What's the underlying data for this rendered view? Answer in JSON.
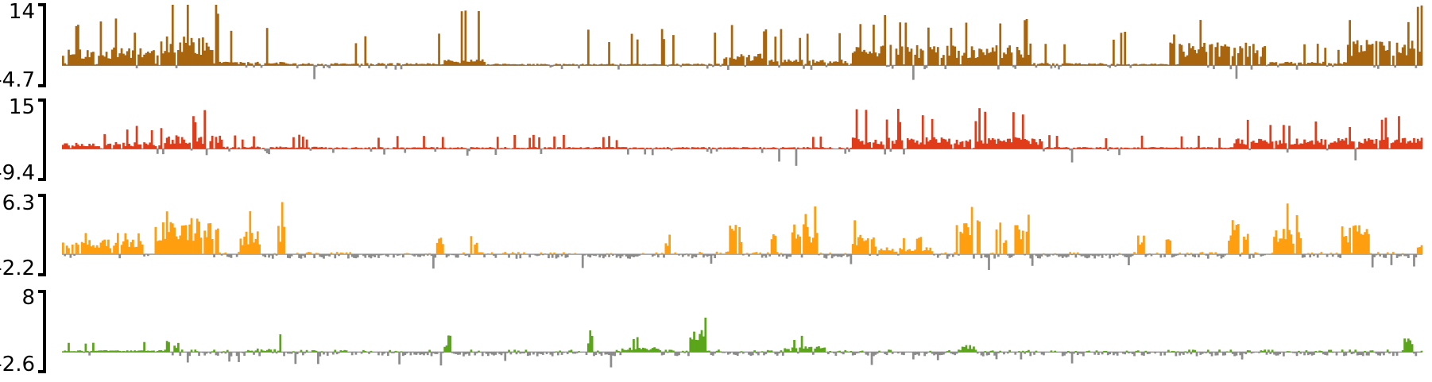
{
  "colors": {
    "negative": "#8c8c8c",
    "axis": "#000000",
    "background": "#ffffff"
  },
  "chart_data": [
    {
      "type": "bar",
      "name": "",
      "color": "#a8650e",
      "ylim": [
        -4.7,
        14
      ],
      "max_label": "14",
      "min_label": "-4.7",
      "bins": 720,
      "seed": 11,
      "profile": [
        {
          "start": 0.0,
          "end": 0.07,
          "level": 0.3,
          "spike": 0.9
        },
        {
          "start": 0.07,
          "end": 0.115,
          "level": 0.48,
          "spike": 1.2
        },
        {
          "start": 0.115,
          "end": 0.165,
          "level": 0.06,
          "spike": 0.7
        },
        {
          "start": 0.165,
          "end": 0.28,
          "level": 0.04,
          "spike": 0.6
        },
        {
          "start": 0.28,
          "end": 0.31,
          "level": 0.1,
          "spike": 1.0
        },
        {
          "start": 0.31,
          "end": 0.485,
          "level": 0.03,
          "spike": 0.6
        },
        {
          "start": 0.485,
          "end": 0.515,
          "level": 0.2,
          "spike": 1.1
        },
        {
          "start": 0.515,
          "end": 0.58,
          "level": 0.1,
          "spike": 0.6
        },
        {
          "start": 0.58,
          "end": 0.71,
          "level": 0.34,
          "spike": 0.9
        },
        {
          "start": 0.71,
          "end": 0.77,
          "level": 0.04,
          "spike": 0.4
        },
        {
          "start": 0.77,
          "end": 0.82,
          "level": 0.03,
          "spike": 0.6
        },
        {
          "start": 0.82,
          "end": 0.885,
          "level": 0.38,
          "spike": 1.0
        },
        {
          "start": 0.885,
          "end": 0.945,
          "level": 0.06,
          "spike": 0.4
        },
        {
          "start": 0.945,
          "end": 1.0,
          "level": 0.42,
          "spike": 1.0
        }
      ]
    },
    {
      "type": "bar",
      "name": "",
      "color": "#e03c1a",
      "ylim": [
        -9.4,
        15
      ],
      "max_label": "15",
      "min_label": "-9.4",
      "bins": 720,
      "seed": 23,
      "profile": [
        {
          "start": 0.0,
          "end": 0.075,
          "level": 0.14,
          "spike": 0.5
        },
        {
          "start": 0.075,
          "end": 0.115,
          "level": 0.28,
          "spike": 0.8
        },
        {
          "start": 0.115,
          "end": 0.2,
          "level": 0.05,
          "spike": 0.3
        },
        {
          "start": 0.2,
          "end": 0.58,
          "level": 0.04,
          "spike": 0.3
        },
        {
          "start": 0.58,
          "end": 0.72,
          "level": 0.24,
          "spike": 0.9
        },
        {
          "start": 0.72,
          "end": 0.86,
          "level": 0.04,
          "spike": 0.3
        },
        {
          "start": 0.86,
          "end": 0.93,
          "level": 0.22,
          "spike": 0.6
        },
        {
          "start": 0.93,
          "end": 1.0,
          "level": 0.24,
          "spike": 0.7
        }
      ]
    },
    {
      "type": "bar",
      "name": "",
      "color": "#ff9e0f",
      "ylim": [
        -2.2,
        6.3
      ],
      "max_label": "6.3",
      "min_label": "-2.2",
      "bins": 720,
      "seed": 37,
      "profile": [
        {
          "start": 0.0,
          "end": 0.06,
          "level": 0.26,
          "spike": 0.5
        },
        {
          "start": 0.068,
          "end": 0.115,
          "level": 0.62,
          "spike": 1.0
        },
        {
          "start": 0.13,
          "end": 0.145,
          "level": 0.4,
          "spike": 0.9
        },
        {
          "start": 0.158,
          "end": 0.163,
          "level": 0.55,
          "spike": 1.0
        },
        {
          "start": 0.275,
          "end": 0.28,
          "level": 0.3,
          "spike": 0.9
        },
        {
          "start": 0.3,
          "end": 0.305,
          "level": 0.42,
          "spike": 0.8
        },
        {
          "start": 0.442,
          "end": 0.446,
          "level": 0.38,
          "spike": 0.7
        },
        {
          "start": 0.48,
          "end": 0.49,
          "level": 0.06,
          "spike": 0.2
        },
        {
          "start": 0.49,
          "end": 0.5,
          "level": 0.5,
          "spike": 0.9
        },
        {
          "start": 0.52,
          "end": 0.525,
          "level": 0.36,
          "spike": 0.8
        },
        {
          "start": 0.535,
          "end": 0.555,
          "level": 0.52,
          "spike": 0.9
        },
        {
          "start": 0.58,
          "end": 0.6,
          "level": 0.34,
          "spike": 0.8
        },
        {
          "start": 0.6,
          "end": 0.64,
          "level": 0.12,
          "spike": 0.3
        },
        {
          "start": 0.655,
          "end": 0.675,
          "level": 0.58,
          "spike": 0.9
        },
        {
          "start": 0.685,
          "end": 0.694,
          "level": 0.55,
          "spike": 0.8
        },
        {
          "start": 0.7,
          "end": 0.71,
          "level": 0.52,
          "spike": 0.9
        },
        {
          "start": 0.79,
          "end": 0.795,
          "level": 0.36,
          "spike": 0.7
        },
        {
          "start": 0.81,
          "end": 0.815,
          "level": 0.55,
          "spike": 0.9
        },
        {
          "start": 0.855,
          "end": 0.872,
          "level": 0.58,
          "spike": 0.9
        },
        {
          "start": 0.89,
          "end": 0.91,
          "level": 0.5,
          "spike": 0.9
        },
        {
          "start": 0.94,
          "end": 0.96,
          "level": 0.56,
          "spike": 1.0
        },
        {
          "start": 0.995,
          "end": 1.0,
          "level": 0.2,
          "spike": 0.5
        }
      ]
    },
    {
      "type": "bar",
      "name": "",
      "color": "#5aa51a",
      "ylim": [
        -2.6,
        8
      ],
      "max_label": "8",
      "min_label": "-2.6",
      "bins": 720,
      "seed": 53,
      "profile": [
        {
          "start": 0.0,
          "end": 0.075,
          "level": 0.03,
          "spike": 0.2
        },
        {
          "start": 0.076,
          "end": 0.079,
          "level": 0.45,
          "spike": 0.7
        },
        {
          "start": 0.081,
          "end": 0.085,
          "level": 0.18,
          "spike": 0.4
        },
        {
          "start": 0.14,
          "end": 0.16,
          "level": 0.06,
          "spike": 0.3
        },
        {
          "start": 0.28,
          "end": 0.286,
          "level": 0.2,
          "spike": 0.4
        },
        {
          "start": 0.386,
          "end": 0.39,
          "level": 0.4,
          "spike": 0.6
        },
        {
          "start": 0.41,
          "end": 0.44,
          "level": 0.08,
          "spike": 0.3
        },
        {
          "start": 0.46,
          "end": 0.475,
          "level": 0.38,
          "spike": 0.6
        },
        {
          "start": 0.53,
          "end": 0.56,
          "level": 0.1,
          "spike": 0.3
        },
        {
          "start": 0.66,
          "end": 0.67,
          "level": 0.14,
          "spike": 0.4
        },
        {
          "start": 0.985,
          "end": 0.992,
          "level": 0.28,
          "spike": 0.5
        }
      ]
    }
  ]
}
